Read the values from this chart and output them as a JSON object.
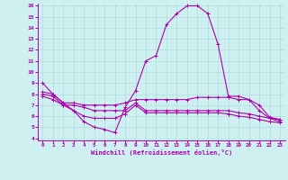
{
  "xlabel": "Windchill (Refroidissement éolien,°C)",
  "bg_color": "#cff0f0",
  "line_color": "#aa00aa",
  "hours": [
    0,
    1,
    2,
    3,
    4,
    5,
    6,
    7,
    8,
    9,
    10,
    11,
    12,
    13,
    14,
    15,
    16,
    17,
    18,
    19,
    20,
    21,
    22,
    23
  ],
  "line1": [
    9.0,
    8.0,
    7.2,
    6.5,
    5.5,
    5.0,
    4.8,
    4.5,
    6.8,
    8.3,
    11.0,
    11.5,
    14.3,
    15.3,
    16.0,
    16.0,
    15.3,
    12.5,
    7.8,
    7.8,
    7.5,
    6.5,
    5.8,
    5.5
  ],
  "line2": [
    8.2,
    8.0,
    7.2,
    7.2,
    7.0,
    7.0,
    7.0,
    7.0,
    7.2,
    7.5,
    7.5,
    7.5,
    7.5,
    7.5,
    7.5,
    7.7,
    7.7,
    7.7,
    7.7,
    7.5,
    7.5,
    7.0,
    5.9,
    5.7
  ],
  "line3": [
    8.0,
    7.8,
    7.0,
    7.0,
    6.8,
    6.5,
    6.5,
    6.5,
    6.5,
    7.2,
    6.5,
    6.5,
    6.5,
    6.5,
    6.5,
    6.5,
    6.5,
    6.5,
    6.5,
    6.3,
    6.2,
    6.0,
    5.8,
    5.7
  ],
  "line4": [
    7.8,
    7.5,
    7.0,
    6.5,
    6.0,
    5.8,
    5.8,
    5.8,
    6.2,
    7.0,
    6.3,
    6.3,
    6.3,
    6.3,
    6.3,
    6.3,
    6.3,
    6.3,
    6.2,
    6.0,
    5.9,
    5.7,
    5.5,
    5.4
  ],
  "ylim": [
    4,
    16
  ],
  "xlim": [
    0,
    23
  ],
  "yticks": [
    4,
    5,
    6,
    7,
    8,
    9,
    10,
    11,
    12,
    13,
    14,
    15,
    16
  ],
  "xticks": [
    0,
    1,
    2,
    3,
    4,
    5,
    6,
    7,
    8,
    9,
    10,
    11,
    12,
    13,
    14,
    15,
    16,
    17,
    18,
    19,
    20,
    21,
    22,
    23
  ]
}
